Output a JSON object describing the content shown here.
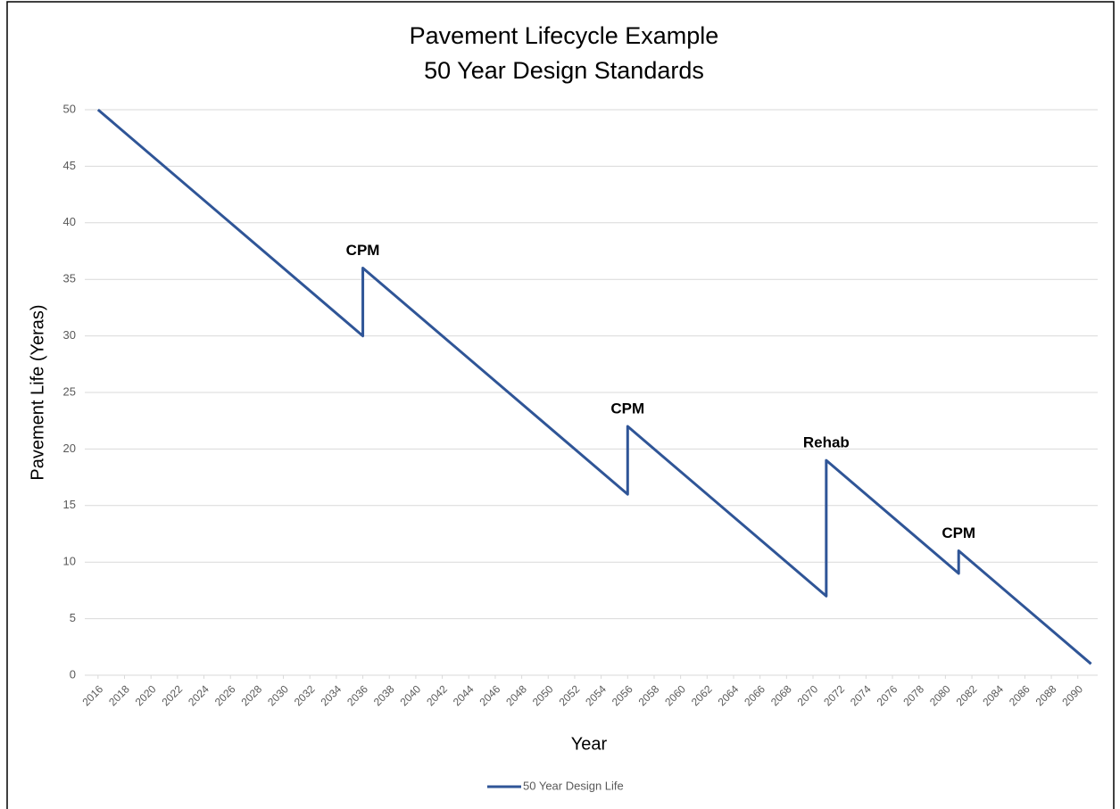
{
  "chart_data": {
    "type": "line",
    "title": "Pavement Lifecycle Example",
    "subtitle": "50 Year Design Standards",
    "x_label": "Year",
    "y_label": "Pavement Life (Yeras)",
    "x": [
      2016,
      2036,
      2036,
      2056,
      2056,
      2071,
      2071,
      2081,
      2081,
      2091
    ],
    "series": [
      {
        "name": "50 Year Design Life",
        "color": "#2f5597",
        "values": [
          50,
          30,
          36,
          16,
          22,
          7,
          19,
          9,
          11,
          1
        ]
      }
    ],
    "annotations": [
      {
        "text": "CPM",
        "x": 2036,
        "y": 36
      },
      {
        "text": "CPM",
        "x": 2056,
        "y": 22
      },
      {
        "text": "Rehab",
        "x": 2071,
        "y": 19
      },
      {
        "text": "CPM",
        "x": 2081,
        "y": 11
      }
    ],
    "xlim": [
      2015,
      2091.5
    ],
    "xticks": [
      2016,
      2018,
      2020,
      2022,
      2024,
      2026,
      2028,
      2030,
      2032,
      2034,
      2036,
      2038,
      2040,
      2042,
      2044,
      2046,
      2048,
      2050,
      2052,
      2054,
      2056,
      2058,
      2060,
      2062,
      2064,
      2066,
      2068,
      2070,
      2072,
      2074,
      2076,
      2078,
      2080,
      2082,
      2084,
      2086,
      2088,
      2090
    ],
    "ylim": [
      0,
      50
    ],
    "yticks": [
      0,
      5,
      10,
      15,
      20,
      25,
      30,
      35,
      40,
      45,
      50
    ],
    "grid": true,
    "legend": "bottom"
  }
}
